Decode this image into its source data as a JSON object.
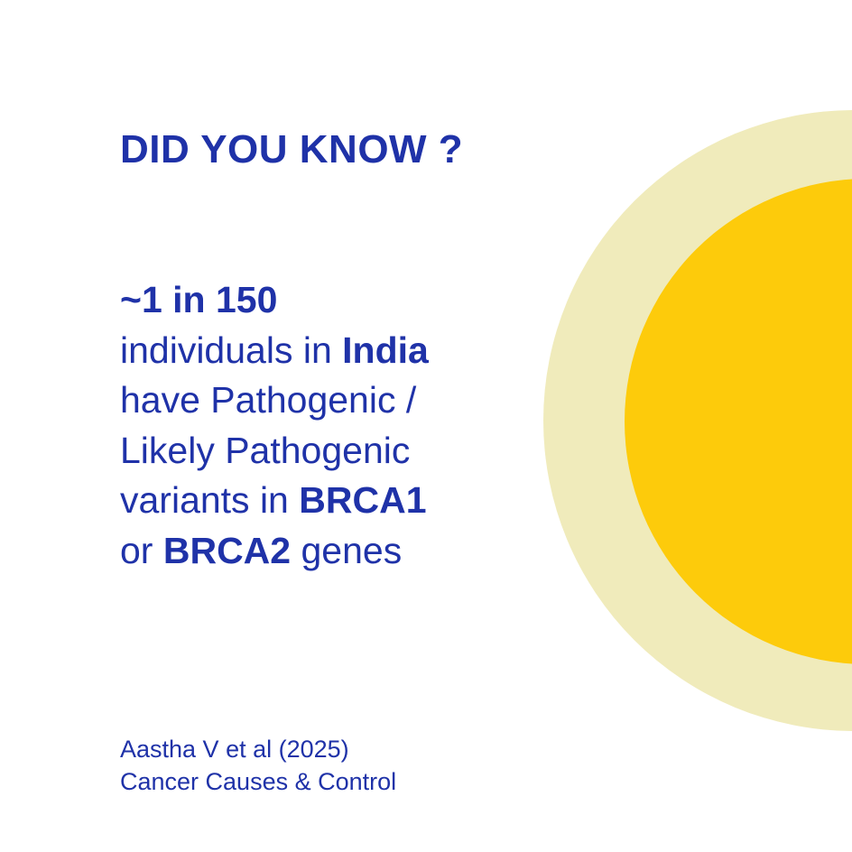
{
  "headline": "DID YOU KNOW ?",
  "fact": {
    "stat": "~1 in 150",
    "line2_prefix": "individuals in ",
    "line2_bold": "India",
    "line3": "have Pathogenic /",
    "line4": "Likely Pathogenic",
    "line5_prefix": "variants in ",
    "line5_bold": "BRCA1",
    "line6_prefix": "or ",
    "line6_bold": "BRCA2",
    "line6_suffix": " genes"
  },
  "citation": {
    "authors": "Aastha V et al (2025)",
    "journal": "Cancer Causes & Control"
  },
  "colors": {
    "text": "#1f32a8",
    "sun": "#fdcb0b",
    "halo": "#f0ebbb",
    "background": "#ffffff"
  }
}
